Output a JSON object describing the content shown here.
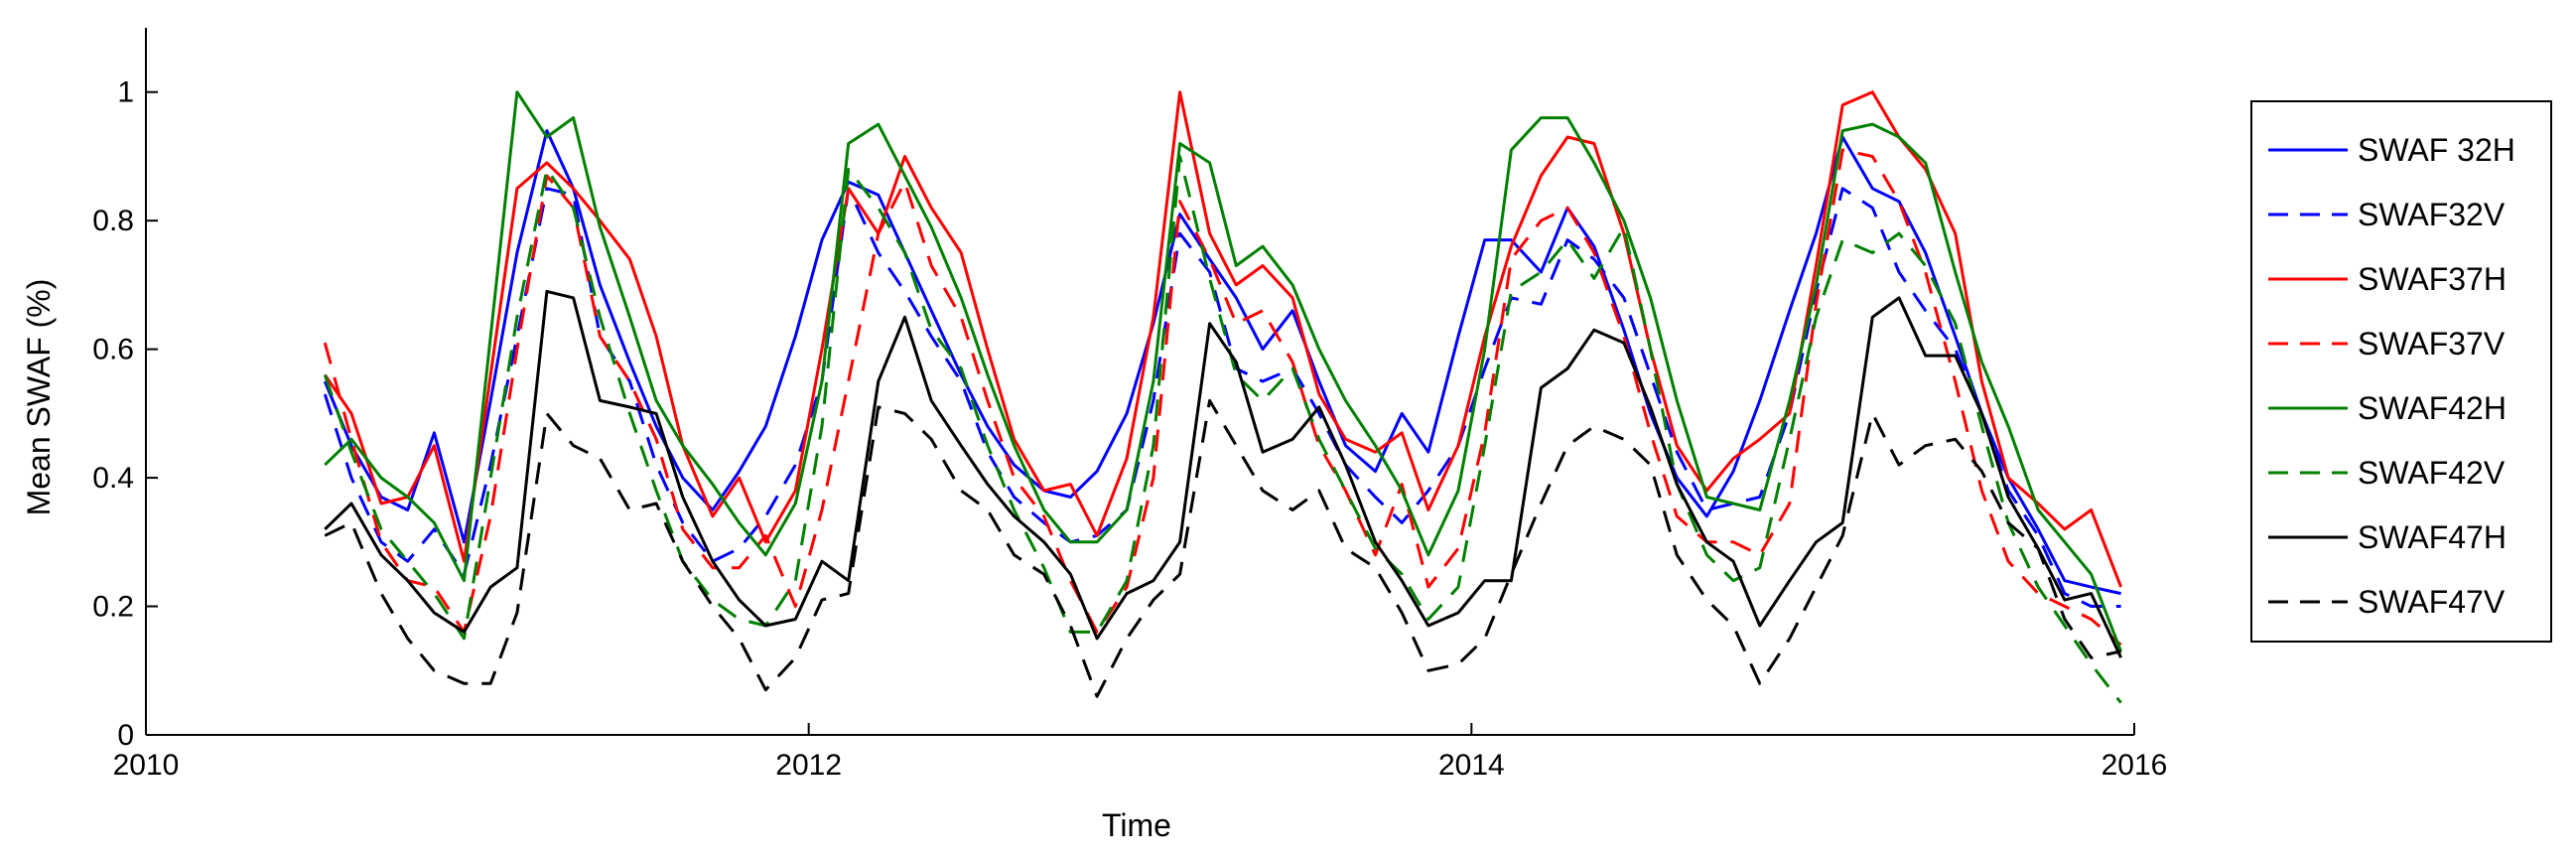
{
  "chart_data": {
    "type": "line",
    "xlabel": "Time",
    "ylabel": "Mean SWAF (%)",
    "xlim": [
      2010,
      2016
    ],
    "ylim": [
      0,
      1.1
    ],
    "xticks": [
      2010,
      2012,
      2014,
      2016
    ],
    "xtick_labels": [
      "2010",
      "2012",
      "2014",
      "2016"
    ],
    "yticks": [
      0,
      0.2,
      0.4,
      0.6,
      0.8,
      1
    ],
    "ytick_labels": [
      "0",
      "0.2",
      "0.4",
      "0.6",
      "0.8",
      "1"
    ],
    "grid": false,
    "legend_position": "outside-right",
    "x": [
      2010.54,
      2010.62,
      2010.71,
      2010.79,
      2010.87,
      2010.96,
      2011.04,
      2011.12,
      2011.21,
      2011.29,
      2011.37,
      2011.46,
      2011.54,
      2011.62,
      2011.71,
      2011.79,
      2011.87,
      2011.96,
      2012.04,
      2012.12,
      2012.21,
      2012.29,
      2012.37,
      2012.46,
      2012.54,
      2012.62,
      2012.71,
      2012.79,
      2012.87,
      2012.96,
      2013.04,
      2013.12,
      2013.21,
      2013.29,
      2013.37,
      2013.46,
      2013.54,
      2013.62,
      2013.71,
      2013.79,
      2013.87,
      2013.96,
      2014.04,
      2014.12,
      2014.21,
      2014.29,
      2014.37,
      2014.46,
      2014.54,
      2014.62,
      2014.71,
      2014.79,
      2014.87,
      2014.96,
      2015.04,
      2015.12,
      2015.21,
      2015.29,
      2015.37,
      2015.46,
      2015.54,
      2015.62,
      2015.71,
      2015.79,
      2015.87,
      2015.96
    ],
    "series": [
      {
        "name": "SWAF 32H",
        "color": "#0000ff",
        "dash": "solid",
        "values": [
          0.55,
          0.45,
          0.37,
          0.35,
          0.47,
          0.3,
          0.52,
          0.75,
          0.94,
          0.85,
          0.7,
          0.58,
          0.48,
          0.4,
          0.35,
          0.41,
          0.48,
          0.62,
          0.77,
          0.86,
          0.84,
          0.75,
          0.66,
          0.56,
          0.48,
          0.42,
          0.38,
          0.37,
          0.41,
          0.5,
          0.64,
          0.81,
          0.74,
          0.68,
          0.6,
          0.66,
          0.55,
          0.45,
          0.41,
          0.5,
          0.44,
          0.62,
          0.77,
          0.77,
          0.72,
          0.82,
          0.76,
          0.63,
          0.5,
          0.4,
          0.34,
          0.41,
          0.52,
          0.66,
          0.78,
          0.93,
          0.85,
          0.83,
          0.75,
          0.62,
          0.5,
          0.4,
          0.32,
          0.24,
          0.23,
          0.22
        ]
      },
      {
        "name": "SWAF32V",
        "color": "#0000ff",
        "dash": "dashed",
        "values": [
          0.53,
          0.4,
          0.3,
          0.27,
          0.32,
          0.25,
          0.42,
          0.62,
          0.85,
          0.84,
          0.62,
          0.55,
          0.42,
          0.33,
          0.27,
          0.29,
          0.34,
          0.42,
          0.55,
          0.85,
          0.75,
          0.69,
          0.62,
          0.55,
          0.44,
          0.37,
          0.33,
          0.3,
          0.31,
          0.35,
          0.52,
          0.78,
          0.72,
          0.57,
          0.55,
          0.57,
          0.5,
          0.42,
          0.37,
          0.33,
          0.38,
          0.45,
          0.57,
          0.68,
          0.67,
          0.77,
          0.74,
          0.68,
          0.56,
          0.44,
          0.35,
          0.36,
          0.37,
          0.5,
          0.69,
          0.85,
          0.82,
          0.72,
          0.66,
          0.6,
          0.5,
          0.38,
          0.31,
          0.22,
          0.2,
          0.2
        ]
      },
      {
        "name": "SWAF37H",
        "color": "#ff0000",
        "dash": "solid",
        "values": [
          0.56,
          0.5,
          0.36,
          0.37,
          0.45,
          0.27,
          0.56,
          0.85,
          0.89,
          0.85,
          0.8,
          0.74,
          0.62,
          0.45,
          0.34,
          0.4,
          0.3,
          0.38,
          0.6,
          0.85,
          0.78,
          0.9,
          0.82,
          0.75,
          0.6,
          0.46,
          0.38,
          0.39,
          0.31,
          0.43,
          0.65,
          1.0,
          0.78,
          0.7,
          0.73,
          0.68,
          0.53,
          0.46,
          0.44,
          0.47,
          0.35,
          0.45,
          0.62,
          0.76,
          0.87,
          0.93,
          0.92,
          0.78,
          0.6,
          0.45,
          0.38,
          0.43,
          0.46,
          0.5,
          0.73,
          0.98,
          1.0,
          0.93,
          0.88,
          0.78,
          0.55,
          0.4,
          0.36,
          0.32,
          0.35,
          0.23
        ]
      },
      {
        "name": "SWAF37V",
        "color": "#ff0000",
        "dash": "dashed",
        "values": [
          0.61,
          0.46,
          0.3,
          0.24,
          0.23,
          0.16,
          0.34,
          0.6,
          0.87,
          0.82,
          0.62,
          0.55,
          0.46,
          0.32,
          0.26,
          0.26,
          0.31,
          0.2,
          0.35,
          0.55,
          0.78,
          0.86,
          0.73,
          0.65,
          0.52,
          0.4,
          0.34,
          0.24,
          0.16,
          0.23,
          0.4,
          0.83,
          0.74,
          0.64,
          0.66,
          0.58,
          0.45,
          0.38,
          0.28,
          0.39,
          0.23,
          0.29,
          0.47,
          0.74,
          0.8,
          0.82,
          0.75,
          0.62,
          0.47,
          0.34,
          0.3,
          0.3,
          0.28,
          0.36,
          0.67,
          0.91,
          0.9,
          0.83,
          0.72,
          0.55,
          0.38,
          0.27,
          0.22,
          0.2,
          0.18,
          0.14
        ]
      },
      {
        "name": "SWAF42H",
        "color": "#008000",
        "dash": "solid",
        "values": [
          0.42,
          0.46,
          0.4,
          0.37,
          0.33,
          0.24,
          0.62,
          1.0,
          0.93,
          0.96,
          0.79,
          0.65,
          0.52,
          0.45,
          0.39,
          0.33,
          0.28,
          0.36,
          0.55,
          0.92,
          0.95,
          0.87,
          0.79,
          0.68,
          0.56,
          0.45,
          0.35,
          0.3,
          0.3,
          0.35,
          0.55,
          0.92,
          0.89,
          0.73,
          0.76,
          0.7,
          0.6,
          0.52,
          0.45,
          0.38,
          0.28,
          0.38,
          0.6,
          0.91,
          0.96,
          0.96,
          0.89,
          0.8,
          0.68,
          0.52,
          0.37,
          0.36,
          0.35,
          0.52,
          0.7,
          0.94,
          0.95,
          0.93,
          0.89,
          0.72,
          0.58,
          0.48,
          0.35,
          0.3,
          0.25,
          0.13
        ]
      },
      {
        "name": "SWAF42V",
        "color": "#008000",
        "dash": "dashed",
        "values": [
          0.56,
          0.44,
          0.32,
          0.27,
          0.22,
          0.15,
          0.4,
          0.65,
          0.88,
          0.82,
          0.65,
          0.5,
          0.38,
          0.27,
          0.21,
          0.18,
          0.17,
          0.24,
          0.48,
          0.88,
          0.82,
          0.75,
          0.63,
          0.57,
          0.45,
          0.35,
          0.26,
          0.16,
          0.16,
          0.24,
          0.45,
          0.9,
          0.71,
          0.56,
          0.52,
          0.57,
          0.46,
          0.38,
          0.29,
          0.25,
          0.18,
          0.23,
          0.45,
          0.69,
          0.72,
          0.77,
          0.71,
          0.79,
          0.6,
          0.39,
          0.28,
          0.24,
          0.26,
          0.46,
          0.65,
          0.77,
          0.75,
          0.78,
          0.73,
          0.64,
          0.48,
          0.33,
          0.23,
          0.17,
          0.11,
          0.05
        ]
      },
      {
        "name": "SWAF47H",
        "color": "#000000",
        "dash": "solid",
        "values": [
          0.32,
          0.36,
          0.28,
          0.24,
          0.19,
          0.16,
          0.23,
          0.26,
          0.69,
          0.68,
          0.52,
          0.51,
          0.5,
          0.37,
          0.27,
          0.21,
          0.17,
          0.18,
          0.27,
          0.24,
          0.55,
          0.65,
          0.52,
          0.45,
          0.39,
          0.34,
          0.3,
          0.25,
          0.15,
          0.22,
          0.24,
          0.3,
          0.64,
          0.58,
          0.44,
          0.46,
          0.51,
          0.42,
          0.3,
          0.24,
          0.17,
          0.19,
          0.24,
          0.24,
          0.54,
          0.57,
          0.63,
          0.61,
          0.51,
          0.39,
          0.3,
          0.27,
          0.17,
          0.24,
          0.3,
          0.33,
          0.65,
          0.68,
          0.59,
          0.59,
          0.5,
          0.37,
          0.29,
          0.21,
          0.22,
          0.12
        ]
      },
      {
        "name": "SWAF47V",
        "color": "#000000",
        "dash": "dashed",
        "values": [
          0.31,
          0.33,
          0.22,
          0.15,
          0.1,
          0.08,
          0.08,
          0.19,
          0.5,
          0.45,
          0.43,
          0.35,
          0.36,
          0.27,
          0.2,
          0.15,
          0.07,
          0.12,
          0.21,
          0.22,
          0.51,
          0.5,
          0.46,
          0.38,
          0.35,
          0.28,
          0.25,
          0.17,
          0.06,
          0.15,
          0.21,
          0.25,
          0.52,
          0.45,
          0.38,
          0.35,
          0.38,
          0.29,
          0.26,
          0.19,
          0.1,
          0.11,
          0.15,
          0.25,
          0.36,
          0.45,
          0.48,
          0.46,
          0.42,
          0.28,
          0.21,
          0.17,
          0.08,
          0.15,
          0.23,
          0.31,
          0.5,
          0.42,
          0.45,
          0.46,
          0.41,
          0.33,
          0.29,
          0.18,
          0.12,
          0.13
        ]
      }
    ]
  }
}
